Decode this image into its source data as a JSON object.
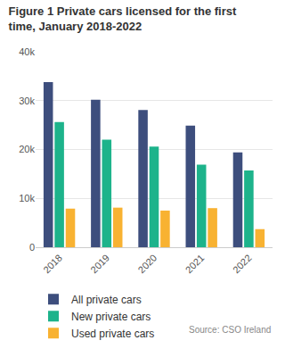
{
  "chart_data": {
    "type": "bar",
    "title": "Figure 1 Private cars licensed for the first time, January 2018-2022",
    "source": "Source: CSO Ireland",
    "categories": [
      "2018",
      "2019",
      "2020",
      "2021",
      "2022"
    ],
    "series": [
      {
        "name": "All private cars",
        "color": "#3d4e7d",
        "values": [
          33800,
          30200,
          28100,
          24900,
          19400
        ]
      },
      {
        "name": "New private cars",
        "color": "#1db38b",
        "values": [
          25600,
          22000,
          20600,
          16900,
          15700
        ]
      },
      {
        "name": "Used private cars",
        "color": "#f8b232",
        "values": [
          7900,
          8100,
          7500,
          8000,
          3700
        ]
      }
    ],
    "ylim": [
      0,
      40000
    ],
    "yticks": [
      0,
      {
        "value": 10000,
        "label": "10k"
      },
      {
        "value": 20000,
        "label": "20k"
      },
      {
        "value": 30000,
        "label": "30k"
      },
      {
        "value": 40000,
        "label": "40k"
      }
    ],
    "grid": true,
    "legend": "bottom"
  }
}
